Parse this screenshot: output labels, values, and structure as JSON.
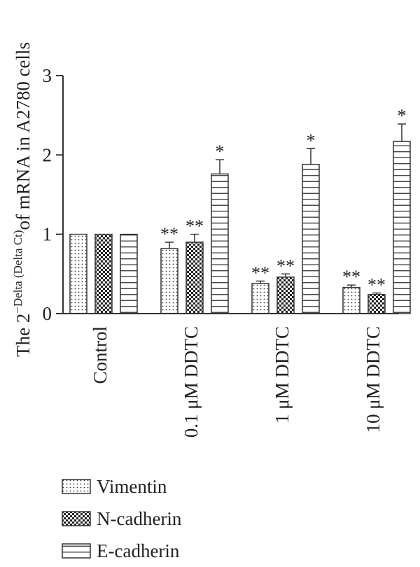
{
  "chart_data": {
    "type": "bar",
    "ylabel_prefix": "The 2",
    "ylabel_superscript": "−Delta (Delta Ct)",
    "ylabel_suffix": "of mRNA in A2780 cells",
    "ylim": [
      0,
      3
    ],
    "yticks": [
      "0",
      "1",
      "2",
      "3"
    ],
    "categories": [
      "Control",
      "0.1 μM DDTC",
      "1 μM DDTC",
      "10 μM DDTC"
    ],
    "series": [
      {
        "name": "Vimentin",
        "pattern": "dots",
        "values": [
          1.0,
          0.82,
          0.38,
          0.33
        ],
        "errors": [
          0,
          0.08,
          0.03,
          0.03
        ],
        "significance": [
          "",
          "**",
          "**",
          "**"
        ]
      },
      {
        "name": "N-cadherin",
        "pattern": "checker",
        "values": [
          1.0,
          0.9,
          0.46,
          0.24
        ],
        "errors": [
          0,
          0.1,
          0.04,
          0.02
        ],
        "significance": [
          "",
          "**",
          "**",
          "**"
        ]
      },
      {
        "name": "E-cadherin",
        "pattern": "hlines",
        "values": [
          1.0,
          1.76,
          1.88,
          2.17
        ],
        "errors": [
          0,
          0.18,
          0.2,
          0.22
        ],
        "significance": [
          "",
          "*",
          "*",
          "*"
        ]
      }
    ],
    "legend_position": "bottom-left",
    "grid": false
  }
}
